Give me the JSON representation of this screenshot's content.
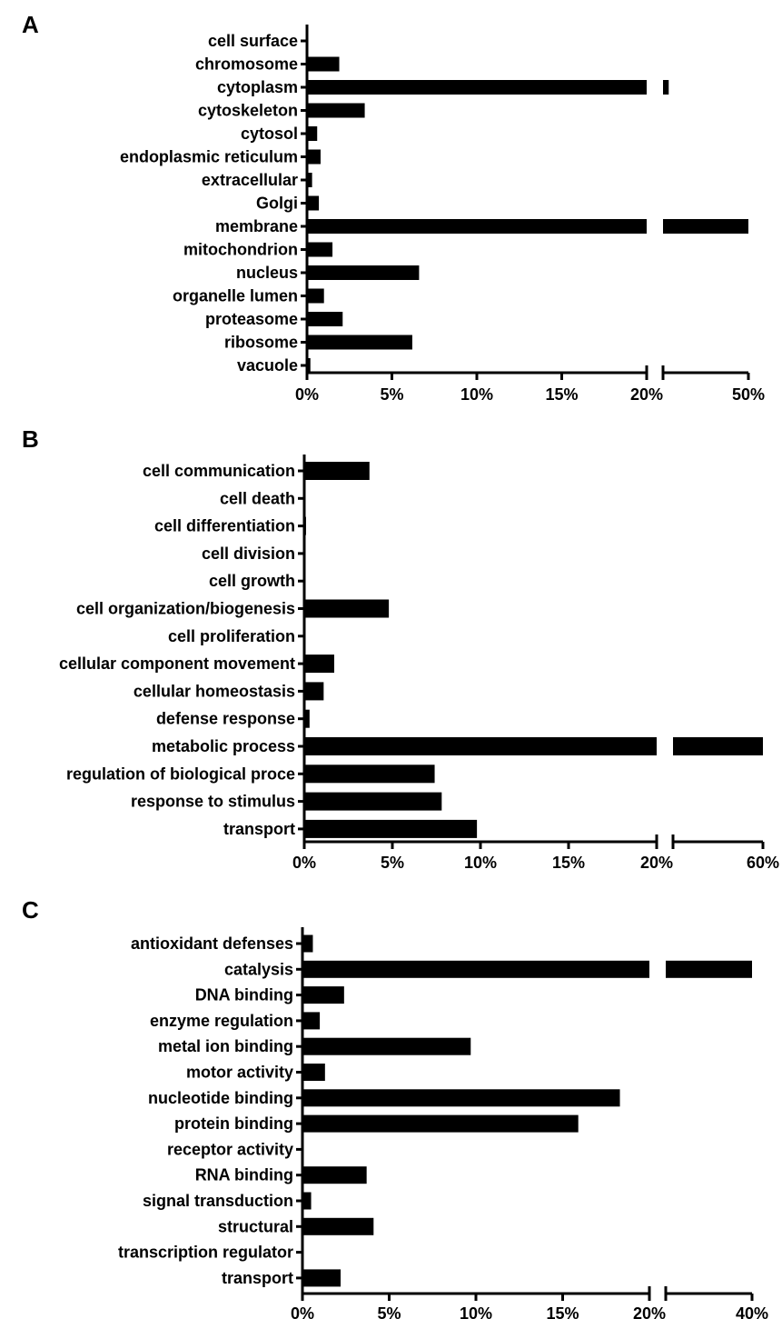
{
  "chart_data": [
    {
      "panel": "A",
      "type": "bar",
      "orientation": "horizontal",
      "axis_break": true,
      "x_ticks": [
        "0%",
        "5%",
        "10%",
        "15%",
        "20%",
        "50%"
      ],
      "categories": [
        "cell surface",
        "chromosome",
        "cytoplasm",
        "cytoskeleton",
        "cytosol",
        "endoplasmic reticulum",
        "extracellular",
        "Golgi",
        "membrane",
        "mitochondrion",
        "nucleus",
        "organelle lumen",
        "proteasome",
        "ribosome",
        "vacuole"
      ],
      "values": [
        0,
        1.9,
        22,
        3.4,
        0.6,
        0.8,
        0.3,
        0.7,
        50,
        1.5,
        6.6,
        1.0,
        2.1,
        6.2,
        0.2
      ],
      "xlim": [
        0,
        50
      ],
      "xlabel": "",
      "ylabel": "",
      "grid": false,
      "color": "#000000"
    },
    {
      "panel": "B",
      "type": "bar",
      "orientation": "horizontal",
      "axis_break": true,
      "x_ticks": [
        "0%",
        "5%",
        "10%",
        "15%",
        "20%",
        "60%"
      ],
      "categories": [
        "cell communication",
        "cell death",
        "cell differentiation",
        "cell division",
        "cell growth",
        "cell organization/biogenesis",
        "cell proliferation",
        "cellular component movement",
        "cellular homeostasis",
        "defense response",
        "metabolic process",
        "regulation of biological proce",
        "response to stimulus",
        "transport"
      ],
      "values": [
        3.7,
        0,
        0.1,
        0,
        0,
        4.8,
        0,
        1.7,
        1.1,
        0.3,
        60,
        7.4,
        7.8,
        9.8
      ],
      "xlim": [
        0,
        60
      ],
      "xlabel": "",
      "ylabel": "",
      "grid": false,
      "color": "#000000"
    },
    {
      "panel": "C",
      "type": "bar",
      "orientation": "horizontal",
      "axis_break": true,
      "x_ticks": [
        "0%",
        "5%",
        "10%",
        "15%",
        "20%",
        "40%"
      ],
      "categories": [
        "antioxidant defenses",
        "catalysis",
        "DNA binding",
        "enzyme regulation",
        "metal ion binding",
        "motor activity",
        "nucleotide binding",
        "protein binding",
        "receptor activity",
        "RNA binding",
        "signal transduction",
        "structural",
        "transcription regulator",
        "transport"
      ],
      "values": [
        0.6,
        40,
        2.4,
        1.0,
        9.7,
        1.3,
        18.3,
        15.9,
        0,
        3.7,
        0.5,
        4.1,
        0,
        2.2
      ],
      "xlim": [
        0,
        40
      ],
      "xlabel": "",
      "ylabel": "",
      "grid": false,
      "color": "#000000"
    }
  ]
}
